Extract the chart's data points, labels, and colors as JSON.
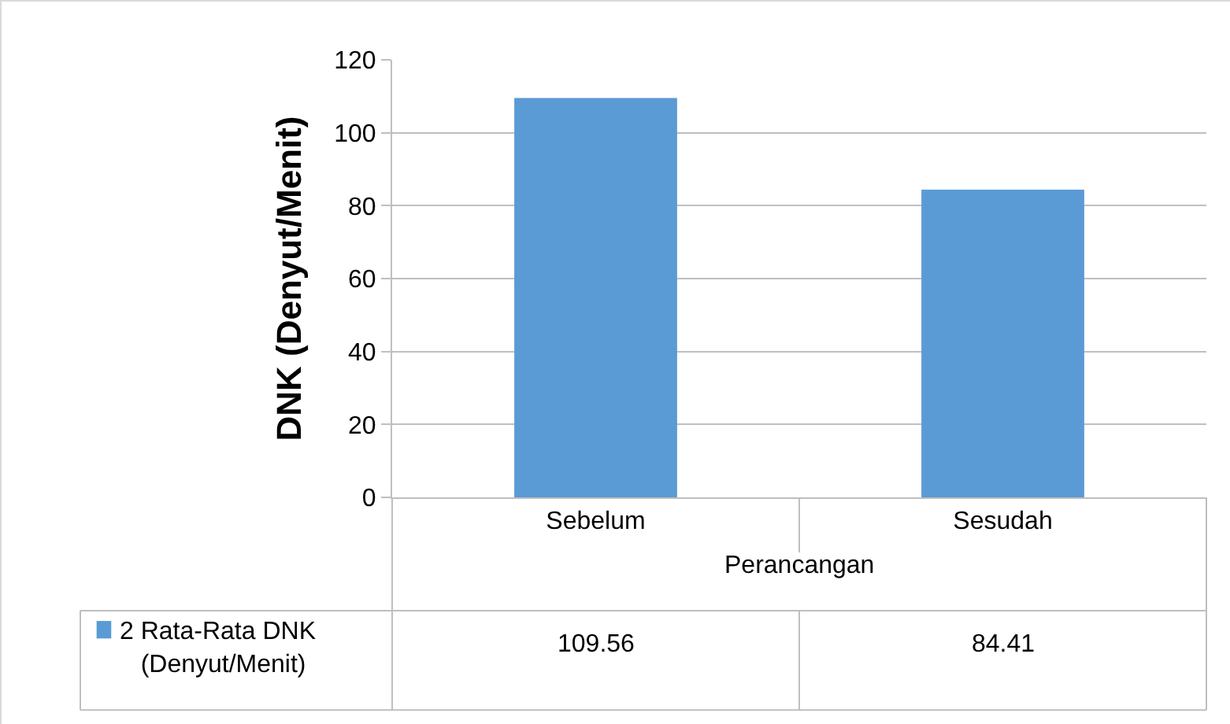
{
  "chart_data": {
    "type": "bar",
    "xlabel": "Perancangan",
    "ylabel": "DNK (Denyut/Menit)",
    "categories": [
      "Sebelum",
      "Sesudah"
    ],
    "series": [
      {
        "name": "2 Rata-Rata DNK (Denyut/Menit)",
        "color": "#5b9bd5",
        "values": [
          109.56,
          84.41
        ]
      }
    ],
    "ylim": [
      0,
      120
    ],
    "yticks": [
      0,
      20,
      40,
      60,
      80,
      100,
      120
    ],
    "grid": "y",
    "legend": "bottom left",
    "data_labels": true
  }
}
